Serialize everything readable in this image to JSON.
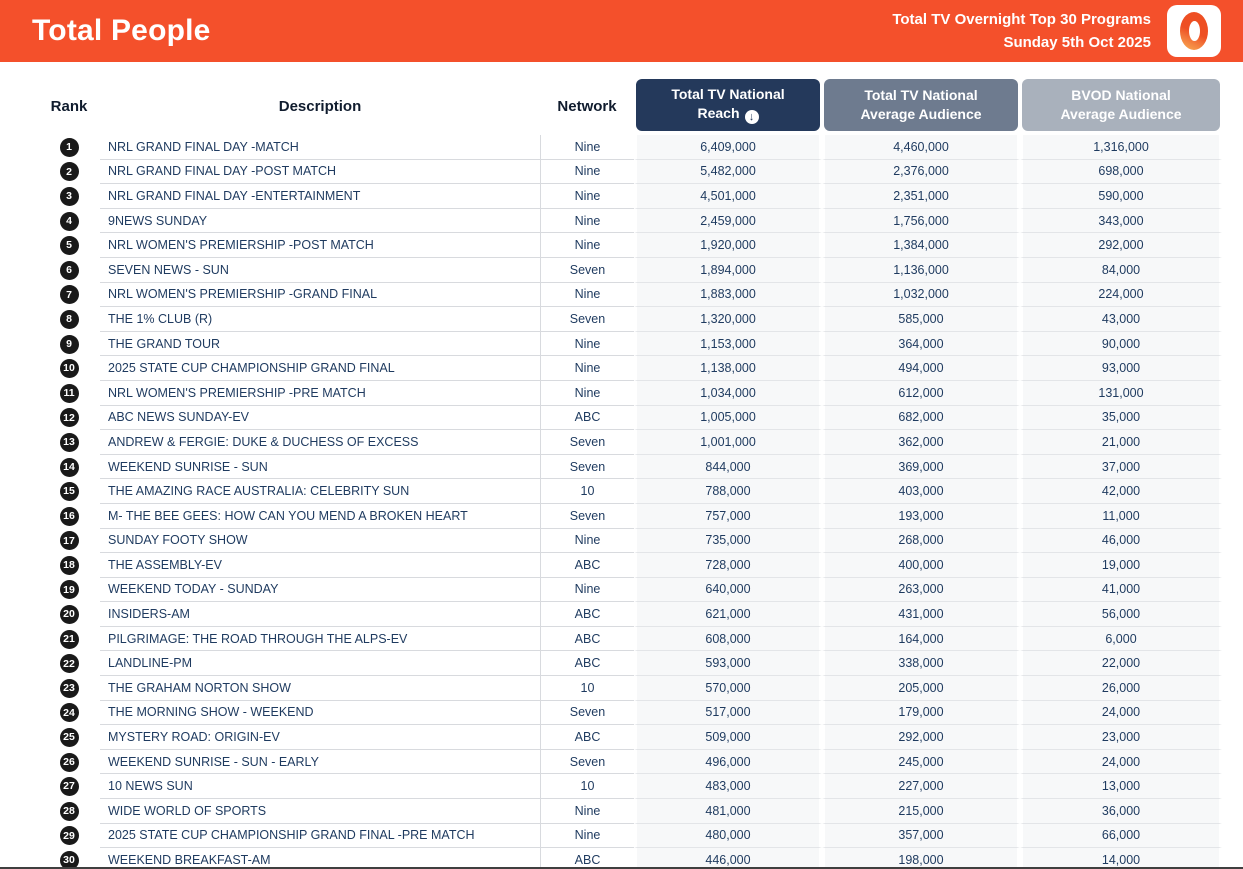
{
  "header": {
    "title": "Total People",
    "subtitle_line1": "Total TV Overnight Top 30 Programs",
    "subtitle_line2": "Sunday 5th Oct 2025",
    "logo_character": "0"
  },
  "colors": {
    "accent_orange": "#f4502b",
    "reach_header": "#24395b",
    "avg_header": "#6e7b8f",
    "bvod_header": "#a9b1bc",
    "row_text_navy": "#1e3a5f",
    "rank_badge_black": "#191919"
  },
  "table": {
    "columns": {
      "rank": "Rank",
      "description": "Description",
      "network": "Network",
      "reach_line1": "Total TV National",
      "reach_line2": "Reach",
      "reach_sort_icon": "circled-down-arrow",
      "avg_line1": "Total TV National",
      "avg_line2": "Average Audience",
      "bvod_line1": "BVOD National",
      "bvod_line2": "Average Audience"
    },
    "rows": [
      {
        "rank": "1",
        "description": "NRL GRAND FINAL DAY -MATCH",
        "network": "Nine",
        "reach": "6,409,000",
        "avg": "4,460,000",
        "bvod": "1,316,000"
      },
      {
        "rank": "2",
        "description": "NRL GRAND FINAL DAY -POST MATCH",
        "network": "Nine",
        "reach": "5,482,000",
        "avg": "2,376,000",
        "bvod": "698,000"
      },
      {
        "rank": "3",
        "description": "NRL GRAND FINAL DAY -ENTERTAINMENT",
        "network": "Nine",
        "reach": "4,501,000",
        "avg": "2,351,000",
        "bvod": "590,000"
      },
      {
        "rank": "4",
        "description": "9NEWS SUNDAY",
        "network": "Nine",
        "reach": "2,459,000",
        "avg": "1,756,000",
        "bvod": "343,000"
      },
      {
        "rank": "5",
        "description": "NRL WOMEN'S PREMIERSHIP -POST MATCH",
        "network": "Nine",
        "reach": "1,920,000",
        "avg": "1,384,000",
        "bvod": "292,000"
      },
      {
        "rank": "6",
        "description": "SEVEN NEWS - SUN",
        "network": "Seven",
        "reach": "1,894,000",
        "avg": "1,136,000",
        "bvod": "84,000"
      },
      {
        "rank": "7",
        "description": "NRL WOMEN'S PREMIERSHIP -GRAND FINAL",
        "network": "Nine",
        "reach": "1,883,000",
        "avg": "1,032,000",
        "bvod": "224,000"
      },
      {
        "rank": "8",
        "description": "THE 1% CLUB (R)",
        "network": "Seven",
        "reach": "1,320,000",
        "avg": "585,000",
        "bvod": "43,000"
      },
      {
        "rank": "9",
        "description": "THE GRAND TOUR",
        "network": "Nine",
        "reach": "1,153,000",
        "avg": "364,000",
        "bvod": "90,000"
      },
      {
        "rank": "10",
        "description": "2025 STATE CUP CHAMPIONSHIP GRAND FINAL",
        "network": "Nine",
        "reach": "1,138,000",
        "avg": "494,000",
        "bvod": "93,000"
      },
      {
        "rank": "11",
        "description": "NRL WOMEN'S PREMIERSHIP -PRE MATCH",
        "network": "Nine",
        "reach": "1,034,000",
        "avg": "612,000",
        "bvod": "131,000"
      },
      {
        "rank": "12",
        "description": "ABC NEWS SUNDAY-EV",
        "network": "ABC",
        "reach": "1,005,000",
        "avg": "682,000",
        "bvod": "35,000"
      },
      {
        "rank": "13",
        "description": "ANDREW & FERGIE: DUKE & DUCHESS OF EXCESS",
        "network": "Seven",
        "reach": "1,001,000",
        "avg": "362,000",
        "bvod": "21,000"
      },
      {
        "rank": "14",
        "description": "WEEKEND SUNRISE - SUN",
        "network": "Seven",
        "reach": "844,000",
        "avg": "369,000",
        "bvod": "37,000"
      },
      {
        "rank": "15",
        "description": "THE AMAZING RACE AUSTRALIA: CELEBRITY SUN",
        "network": "10",
        "reach": "788,000",
        "avg": "403,000",
        "bvod": "42,000"
      },
      {
        "rank": "16",
        "description": "M- THE BEE GEES: HOW CAN YOU MEND A BROKEN HEART",
        "network": "Seven",
        "reach": "757,000",
        "avg": "193,000",
        "bvod": "11,000"
      },
      {
        "rank": "17",
        "description": "SUNDAY FOOTY SHOW",
        "network": "Nine",
        "reach": "735,000",
        "avg": "268,000",
        "bvod": "46,000"
      },
      {
        "rank": "18",
        "description": "THE ASSEMBLY-EV",
        "network": "ABC",
        "reach": "728,000",
        "avg": "400,000",
        "bvod": "19,000"
      },
      {
        "rank": "19",
        "description": "WEEKEND TODAY - SUNDAY",
        "network": "Nine",
        "reach": "640,000",
        "avg": "263,000",
        "bvod": "41,000"
      },
      {
        "rank": "20",
        "description": "INSIDERS-AM",
        "network": "ABC",
        "reach": "621,000",
        "avg": "431,000",
        "bvod": "56,000"
      },
      {
        "rank": "21",
        "description": "PILGRIMAGE: THE ROAD THROUGH THE ALPS-EV",
        "network": "ABC",
        "reach": "608,000",
        "avg": "164,000",
        "bvod": "6,000"
      },
      {
        "rank": "22",
        "description": "LANDLINE-PM",
        "network": "ABC",
        "reach": "593,000",
        "avg": "338,000",
        "bvod": "22,000"
      },
      {
        "rank": "23",
        "description": "THE GRAHAM NORTON SHOW",
        "network": "10",
        "reach": "570,000",
        "avg": "205,000",
        "bvod": "26,000"
      },
      {
        "rank": "24",
        "description": "THE MORNING SHOW - WEEKEND",
        "network": "Seven",
        "reach": "517,000",
        "avg": "179,000",
        "bvod": "24,000"
      },
      {
        "rank": "25",
        "description": "MYSTERY ROAD: ORIGIN-EV",
        "network": "ABC",
        "reach": "509,000",
        "avg": "292,000",
        "bvod": "23,000"
      },
      {
        "rank": "26",
        "description": "WEEKEND SUNRISE - SUN - EARLY",
        "network": "Seven",
        "reach": "496,000",
        "avg": "245,000",
        "bvod": "24,000"
      },
      {
        "rank": "27",
        "description": "10 NEWS SUN",
        "network": "10",
        "reach": "483,000",
        "avg": "227,000",
        "bvod": "13,000"
      },
      {
        "rank": "28",
        "description": "WIDE WORLD OF SPORTS",
        "network": "Nine",
        "reach": "481,000",
        "avg": "215,000",
        "bvod": "36,000"
      },
      {
        "rank": "29",
        "description": "2025 STATE CUP CHAMPIONSHIP GRAND FINAL -PRE MATCH",
        "network": "Nine",
        "reach": "480,000",
        "avg": "357,000",
        "bvod": "66,000"
      },
      {
        "rank": "30",
        "description": "WEEKEND BREAKFAST-AM",
        "network": "ABC",
        "reach": "446,000",
        "avg": "198,000",
        "bvod": "14,000"
      }
    ]
  }
}
